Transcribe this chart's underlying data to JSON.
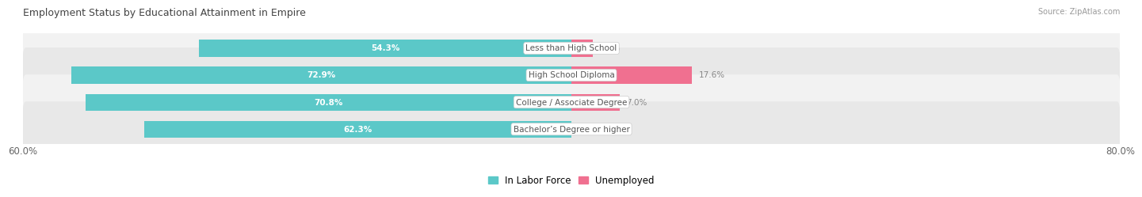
{
  "title": "Employment Status by Educational Attainment in Empire",
  "source": "Source: ZipAtlas.com",
  "categories": [
    "Less than High School",
    "High School Diploma",
    "College / Associate Degree",
    "Bachelor’s Degree or higher"
  ],
  "in_labor_force": [
    54.3,
    72.9,
    70.8,
    62.3
  ],
  "unemployed": [
    3.1,
    17.6,
    7.0,
    0.0
  ],
  "labor_force_color": "#5bc8c8",
  "unemployed_color": "#f07090",
  "x_left_label": "60.0%",
  "x_right_label": "80.0%",
  "x_min": -80.0,
  "x_max": 80.0,
  "title_fontsize": 9,
  "bar_height": 0.62,
  "category_fontsize": 7.5,
  "value_fontsize": 7.5,
  "row_bg_even": "#f2f2f2",
  "row_bg_odd": "#e8e8e8"
}
